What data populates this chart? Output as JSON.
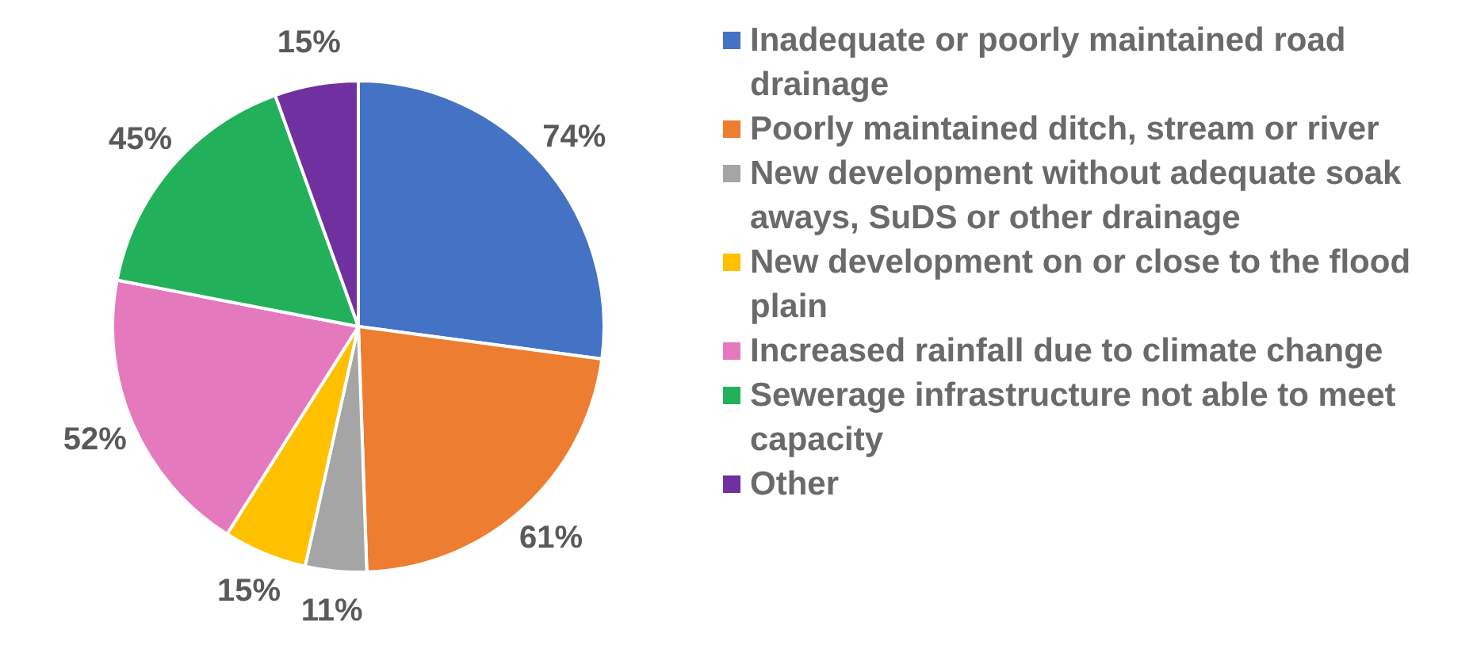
{
  "chart_data": {
    "type": "pie",
    "categories": [
      "Inadequate or poorly maintained road drainage",
      "Poorly maintained ditch, stream or river",
      "New development without adequate soak aways, SuDS or other drainage",
      "New development on or close to the flood plain",
      "Increased rainfall due to climate change",
      "Sewerage infrastructure not able to meet capacity",
      "Other"
    ],
    "values": [
      74,
      61,
      11,
      15,
      52,
      45,
      15
    ],
    "value_labels": [
      "74%",
      "61%",
      "11%",
      "15%",
      "52%",
      "45%",
      "15%"
    ],
    "colors": [
      "#4472c4",
      "#ed7d31",
      "#a5a5a5",
      "#ffc000",
      "#e479be",
      "#22b15a",
      "#7030a0"
    ],
    "legend": "right"
  }
}
